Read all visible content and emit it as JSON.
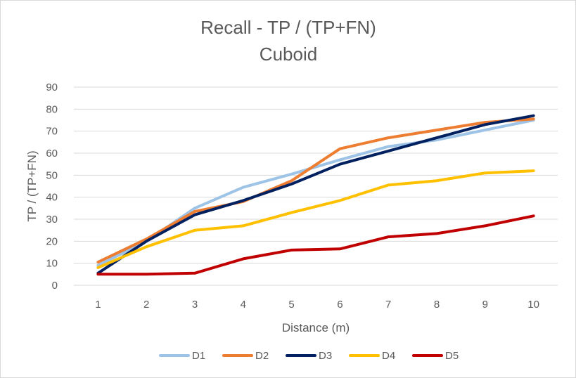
{
  "chart_data": {
    "type": "line",
    "title": "Recall - TP / (TP+FN)",
    "subtitle": "Cuboid",
    "xlabel": "Distance (m)",
    "ylabel": "TP / (TP+FN)",
    "x": [
      1,
      2,
      3,
      4,
      5,
      6,
      7,
      8,
      9,
      10
    ],
    "ylim": [
      0,
      90
    ],
    "yticks": [
      0,
      10,
      20,
      30,
      40,
      50,
      60,
      70,
      80,
      90
    ],
    "grid": true,
    "legend_position": "bottom",
    "series": [
      {
        "name": "D1",
        "color": "#9DC3E6",
        "values": [
          9,
          20,
          35,
          44.5,
          50.5,
          57,
          63,
          66,
          70.5,
          75
        ]
      },
      {
        "name": "D2",
        "color": "#ED7D31",
        "values": [
          10.5,
          21,
          33.5,
          38,
          47.5,
          62,
          67,
          70.5,
          74,
          75.5
        ]
      },
      {
        "name": "D3",
        "color": "#002060",
        "values": [
          5.5,
          20,
          32,
          38.5,
          46,
          55,
          61,
          67,
          73,
          77
        ]
      },
      {
        "name": "D4",
        "color": "#FFC000",
        "values": [
          8,
          17.5,
          25,
          27,
          33,
          38.5,
          45.5,
          47.5,
          51,
          52
        ]
      },
      {
        "name": "D5",
        "color": "#C00000",
        "values": [
          5,
          5,
          5.5,
          12,
          16,
          16.5,
          22,
          23.5,
          27,
          31.5
        ]
      }
    ]
  }
}
